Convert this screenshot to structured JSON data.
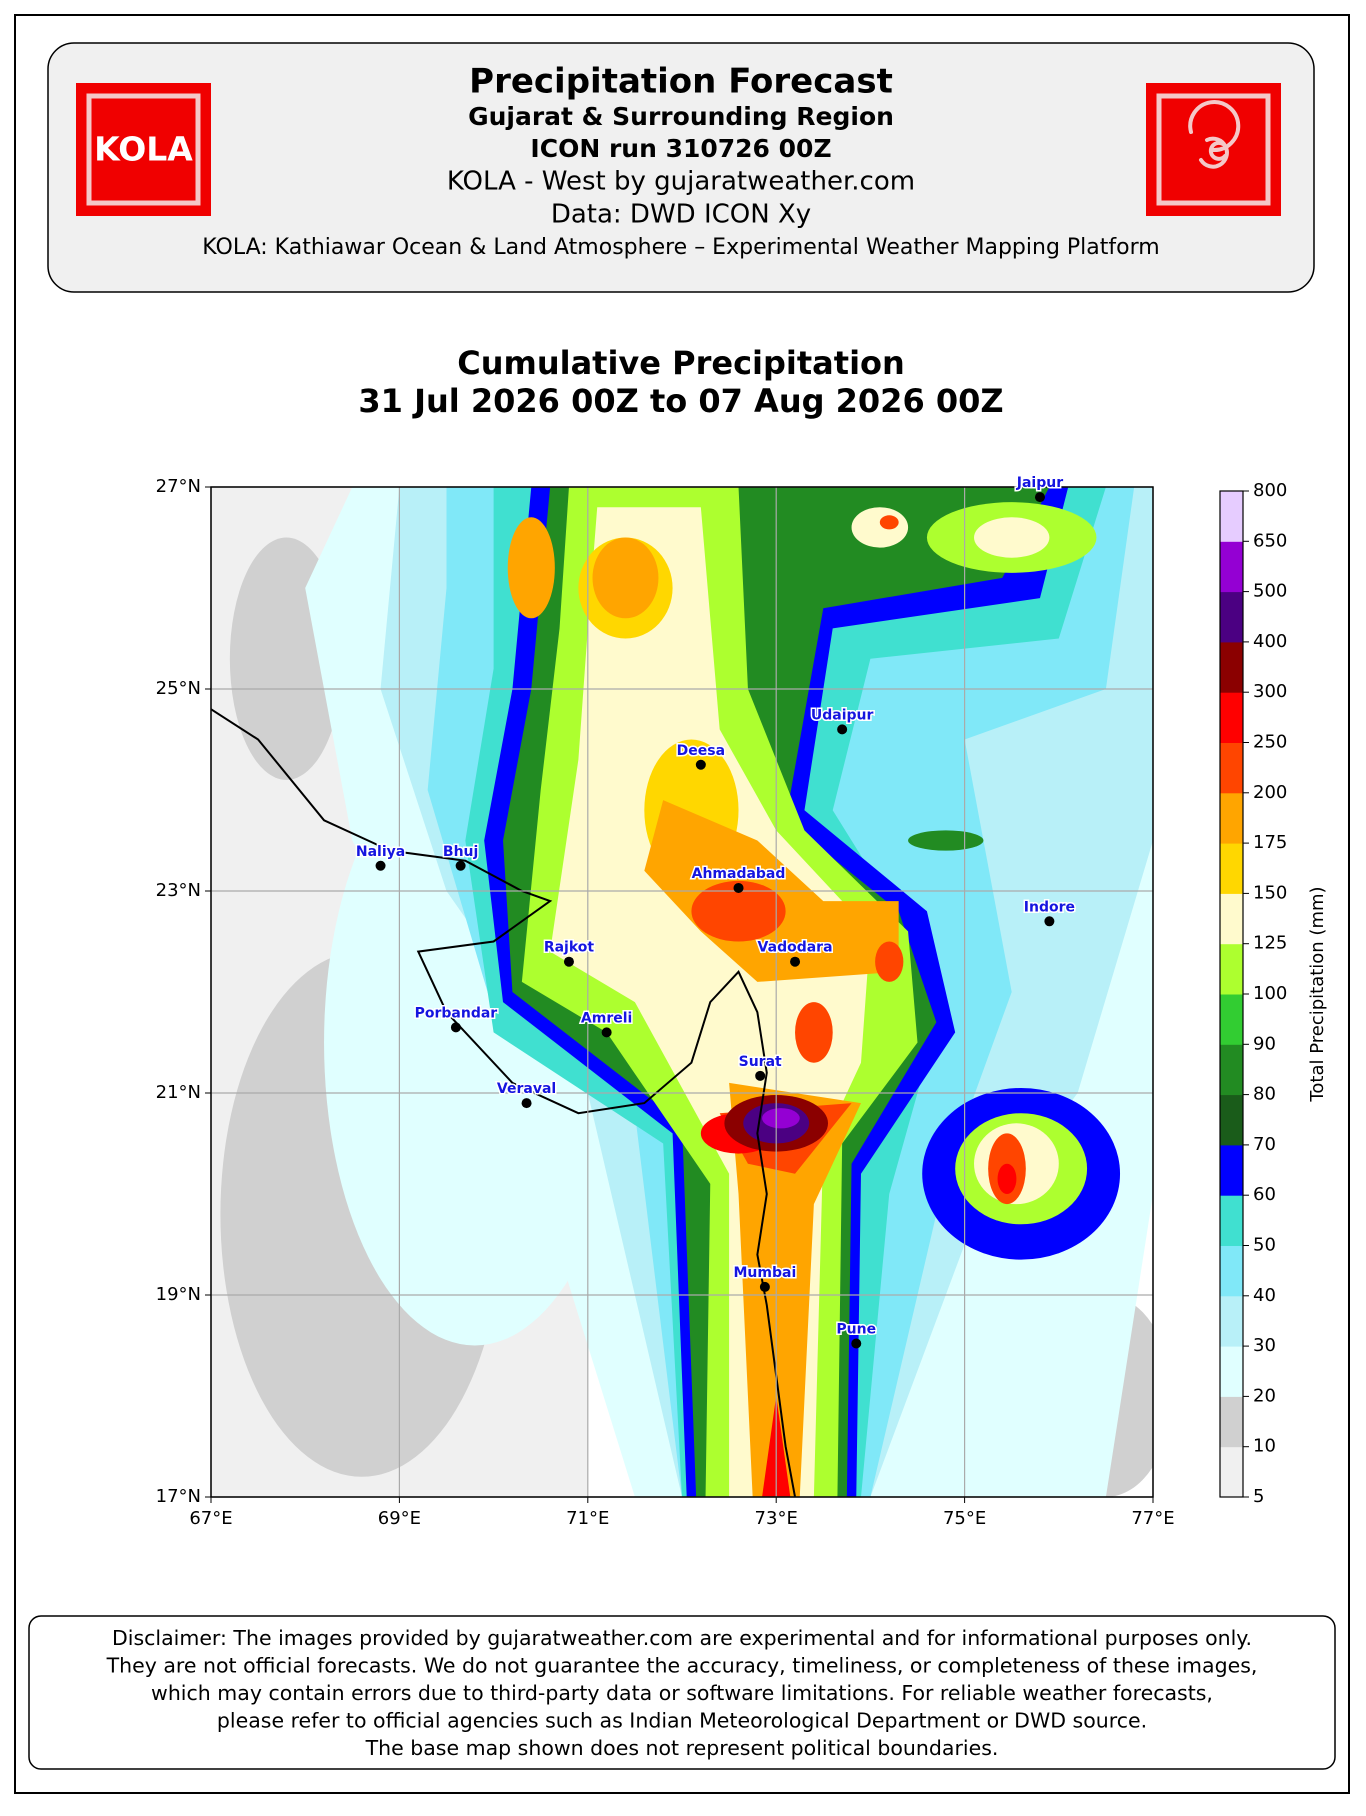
{
  "header": {
    "title": "Precipitation Forecast",
    "subtitle": "Gujarat & Surrounding Region",
    "run": "ICON run 310726 00Z",
    "source": "KOLA - West by gujaratweather.com",
    "data_line": "Data: DWD ICON Xy",
    "platform": "KOLA: Kathiawar Ocean & Land Atmosphere – Experimental Weather Mapping Platform",
    "logo_text": "KOLA"
  },
  "map": {
    "title": "Cumulative Precipitation",
    "subtitle": "31 Jul 2026 00Z to 07 Aug 2026 00Z",
    "xlim": [
      67,
      77
    ],
    "ylim": [
      17,
      27
    ],
    "xticks": [
      {
        "value": 67,
        "label": "67°E"
      },
      {
        "value": 69,
        "label": "69°E"
      },
      {
        "value": 71,
        "label": "71°E"
      },
      {
        "value": 73,
        "label": "73°E"
      },
      {
        "value": 75,
        "label": "75°E"
      },
      {
        "value": 77,
        "label": "77°E"
      }
    ],
    "yticks": [
      {
        "value": 17,
        "label": "17°N"
      },
      {
        "value": 19,
        "label": "19°N"
      },
      {
        "value": 21,
        "label": "21°N"
      },
      {
        "value": 23,
        "label": "23°N"
      },
      {
        "value": 25,
        "label": "25°N"
      },
      {
        "value": 27,
        "label": "27°N"
      }
    ],
    "grid": true,
    "cities": [
      {
        "name": "Jaipur",
        "lon": 75.8,
        "lat": 26.9
      },
      {
        "name": "Udaipur",
        "lon": 73.7,
        "lat": 24.6
      },
      {
        "name": "Deesa",
        "lon": 72.2,
        "lat": 24.25
      },
      {
        "name": "Naliya",
        "lon": 68.8,
        "lat": 23.25
      },
      {
        "name": "Bhuj",
        "lon": 69.65,
        "lat": 23.25
      },
      {
        "name": "Ahmadabad",
        "lon": 72.6,
        "lat": 23.03
      },
      {
        "name": "Indore",
        "lon": 75.9,
        "lat": 22.7
      },
      {
        "name": "Rajkot",
        "lon": 70.8,
        "lat": 22.3
      },
      {
        "name": "Vadodara",
        "lon": 73.2,
        "lat": 22.3
      },
      {
        "name": "Porbandar",
        "lon": 69.6,
        "lat": 21.65
      },
      {
        "name": "Amreli",
        "lon": 71.2,
        "lat": 21.6
      },
      {
        "name": "Surat",
        "lon": 72.83,
        "lat": 21.17
      },
      {
        "name": "Veraval",
        "lon": 70.35,
        "lat": 20.9
      },
      {
        "name": "Mumbai",
        "lon": 72.88,
        "lat": 19.08
      },
      {
        "name": "Pune",
        "lon": 73.85,
        "lat": 18.52
      }
    ],
    "colorbar": {
      "label": "Total Precipitation (mm)",
      "levels": [
        5,
        10,
        20,
        30,
        40,
        50,
        60,
        70,
        80,
        90,
        100,
        125,
        150,
        175,
        200,
        250,
        300,
        400,
        500,
        650,
        800
      ],
      "colors": [
        "#f0f0f0",
        "#d0d0d0",
        "#e0ffff",
        "#b8f0f8",
        "#80e8f8",
        "#40e0d0",
        "#0000ff",
        "#1a5c1a",
        "#228b22",
        "#32cd32",
        "#adff2f",
        "#fffacd",
        "#ffd700",
        "#ffa500",
        "#ff4500",
        "#ff0000",
        "#8b0000",
        "#4b0082",
        "#9400d3",
        "#e6ccff"
      ]
    }
  },
  "disclaimer": [
    "Disclaimer: The images provided by gujaratweather.com are experimental and for informational purposes only.",
    "They are not official forecasts. We do not guarantee the accuracy, timeliness, or completeness of these images,",
    "which may contain errors due to third-party data or software limitations. For reliable weather forecasts,",
    "please refer to official agencies such as Indian Meteorological Department or DWD source.",
    "The base map shown does not represent political boundaries."
  ]
}
